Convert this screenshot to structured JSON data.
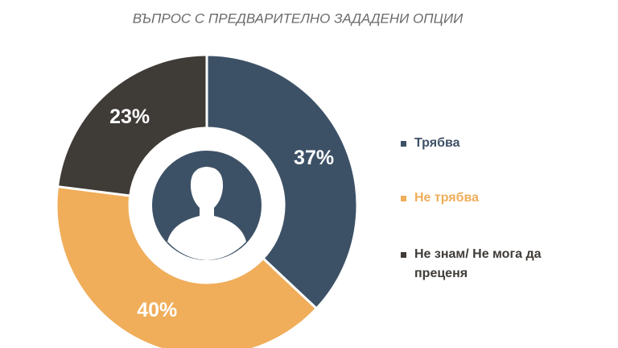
{
  "chart_data": {
    "type": "donut",
    "title": "ВЪПРОС С ПРЕДВАРИТЕЛНО ЗАДАДЕНИ ОПЦИИ",
    "categories": [
      "Трябва",
      "Не трябва",
      "Не знам/ Не мога да преценя"
    ],
    "values": [
      37,
      40,
      23
    ],
    "value_labels": [
      "37%",
      "40%",
      "23%"
    ],
    "colors": [
      "#3d5166",
      "#f0ad5a",
      "#3f3b37"
    ],
    "legend": "right"
  }
}
